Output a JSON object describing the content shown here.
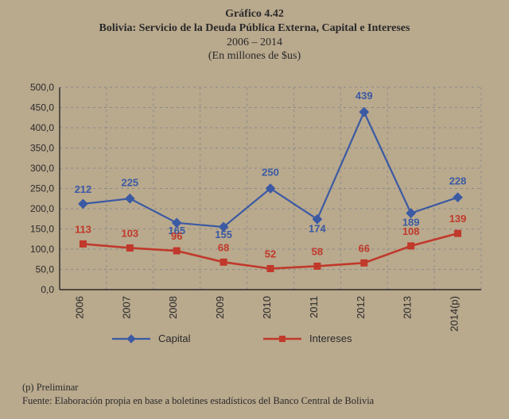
{
  "background_color": "#b9a98d",
  "title": {
    "line1": "Gráfico 4.42",
    "line2": "Bolivia: Servicio de la Deuda Pública Externa, Capital e Intereses",
    "line3": "2006 – 2014",
    "line4": "(En millones de $us)",
    "color": "#2a2a2a",
    "fontsize_bold": 14,
    "fontsize_normal": 14
  },
  "chart": {
    "type": "line",
    "plot_background": "#b9a98d",
    "grid_color": "#8a8a8a",
    "grid_style": "dashed",
    "axis_color": "#2a2a2a",
    "ylim": [
      0,
      500
    ],
    "ytick_step": 50,
    "y_decimal_sep": ",",
    "y_decimals": 1,
    "categories": [
      "2006",
      "2007",
      "2008",
      "2009",
      "2010",
      "2011",
      "2012",
      "2013",
      "2014(p)"
    ],
    "x_label_rotation": -90,
    "tick_fontsize": 12,
    "label_fontsize": 13,
    "series": [
      {
        "name": "Capital",
        "color": "#3b5aa3",
        "line_width": 2.2,
        "marker": "diamond",
        "marker_size": 9,
        "values": [
          212,
          225,
          165,
          155,
          250,
          174,
          439,
          189,
          228
        ],
        "labels": [
          "212",
          "225",
          "165",
          "155",
          "250",
          "174",
          "439",
          "189",
          "228"
        ],
        "label_dy": [
          -14,
          -16,
          14,
          14,
          -16,
          16,
          -16,
          16,
          -16
        ]
      },
      {
        "name": "Intereses",
        "color": "#c0392b",
        "line_width": 2.6,
        "marker": "square",
        "marker_size": 8,
        "values": [
          113,
          103,
          96,
          68,
          52,
          58,
          66,
          108,
          139
        ],
        "labels": [
          "113",
          "103",
          "96",
          "68",
          "52",
          "58",
          "66",
          "108",
          "139"
        ],
        "label_dy": [
          -14,
          -14,
          -14,
          -14,
          -14,
          -14,
          -14,
          -14,
          -14
        ]
      }
    ],
    "legend": {
      "items": [
        "Capital",
        "Intereses"
      ],
      "position": "bottom"
    }
  },
  "footer": {
    "line1": "(p) Preliminar",
    "line2": "Fuente: Elaboración propia en base a boletines estadísticos del Banco Central de Bolivia"
  }
}
